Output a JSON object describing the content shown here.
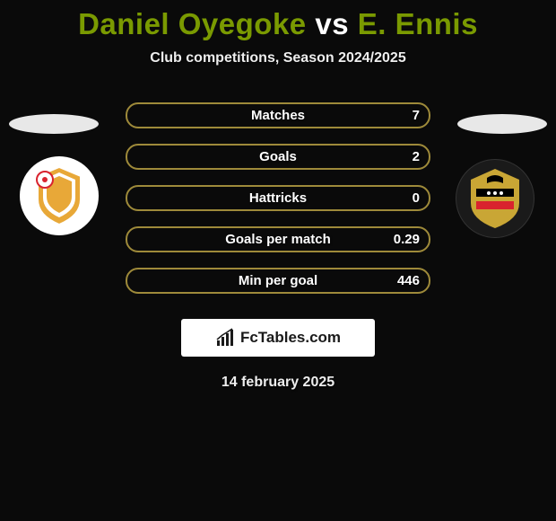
{
  "title": {
    "player1": "Daniel Oyegoke",
    "vs": "vs",
    "player2": "E. Ennis",
    "player1_color": "#7a9a01",
    "vs_color": "#ffffff",
    "player2_color": "#7a9a01"
  },
  "subtitle": "Club competitions, Season 2024/2025",
  "stats": [
    {
      "label": "Matches",
      "value": "7",
      "border_color": "#9e8a3a",
      "fill_color": "transparent"
    },
    {
      "label": "Goals",
      "value": "2",
      "border_color": "#9e8a3a",
      "fill_color": "transparent"
    },
    {
      "label": "Hattricks",
      "value": "0",
      "border_color": "#9e8a3a",
      "fill_color": "transparent"
    },
    {
      "label": "Goals per match",
      "value": "0.29",
      "border_color": "#9e8a3a",
      "fill_color": "transparent"
    },
    {
      "label": "Min per goal",
      "value": "446",
      "border_color": "#9e8a3a",
      "fill_color": "transparent"
    }
  ],
  "logo": {
    "brand": "FcTables.com",
    "icon_color": "#1a1a1a"
  },
  "date": "14 february 2025",
  "colors": {
    "background": "#0a0a0a",
    "ellipse": "#e8e8e8",
    "crest_left_bg": "#ffffff",
    "crest_right_bg": "#1a1a1a"
  },
  "crests": {
    "left": {
      "shield_color": "#e8a838",
      "accent_color": "#ffffff",
      "dot_color": "#d9232e"
    },
    "right": {
      "shield_color": "#c9a635",
      "stripe_top": "#000000",
      "stripe_bottom": "#d9232e",
      "detail": "#ffffff"
    }
  }
}
